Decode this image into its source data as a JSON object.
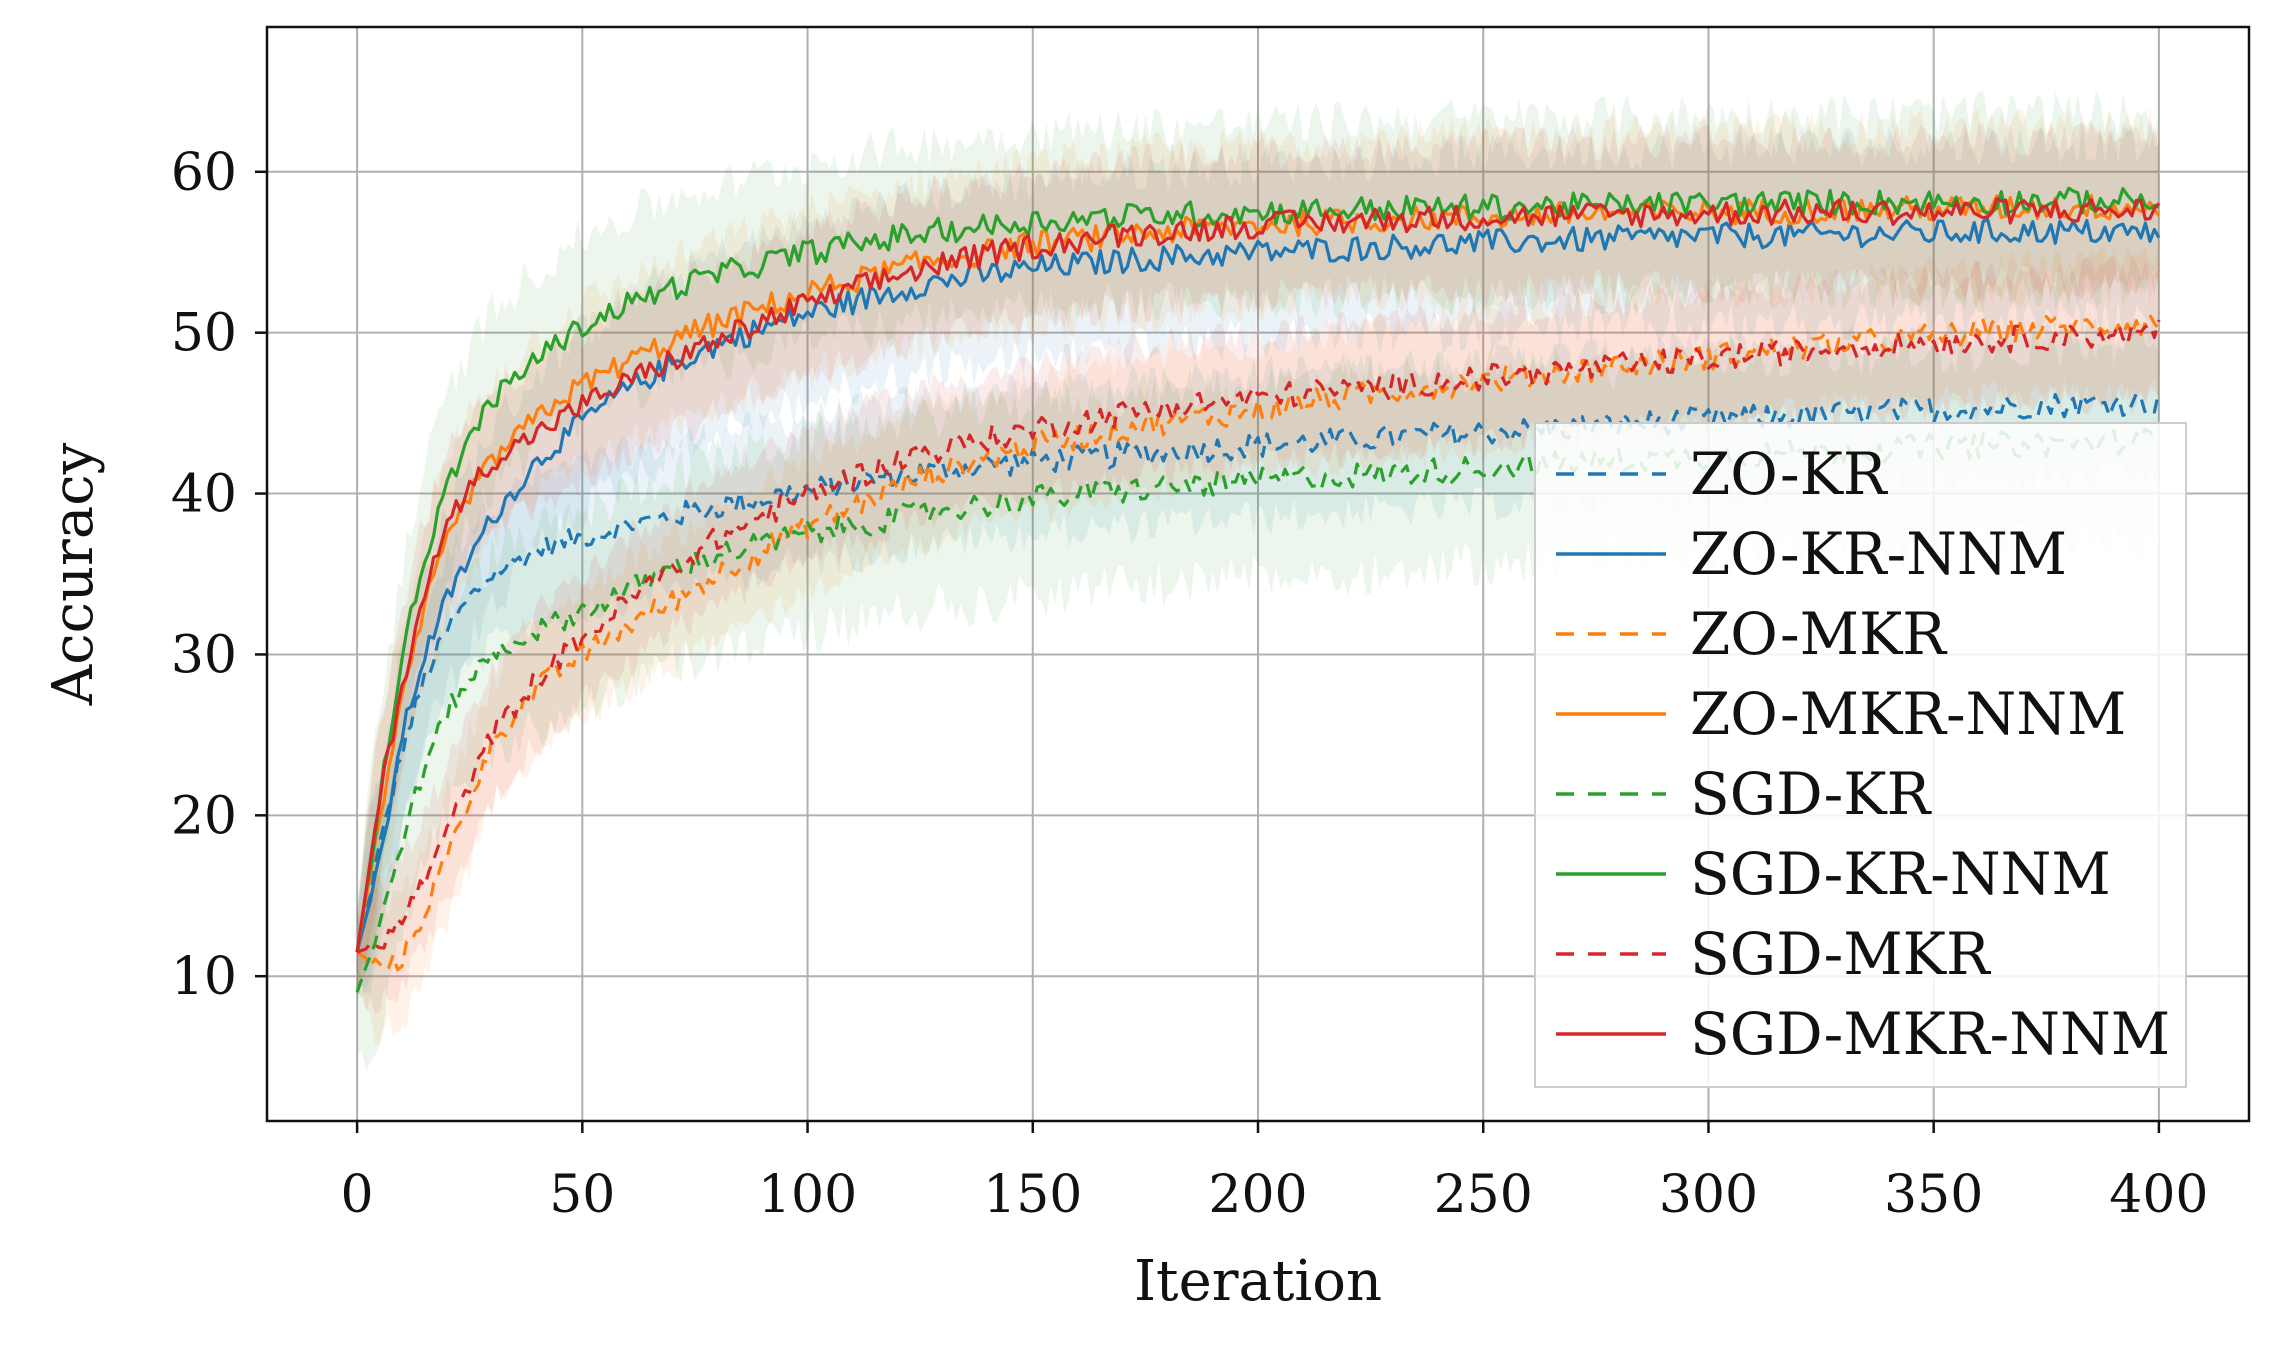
{
  "chart_data": {
    "type": "line",
    "title": "",
    "xlabel": "Iteration",
    "ylabel": "Accuracy",
    "xlim": [
      -20,
      420
    ],
    "ylim": [
      1,
      69
    ],
    "xticks": [
      0,
      50,
      100,
      150,
      200,
      250,
      300,
      350,
      400
    ],
    "yticks": [
      10,
      20,
      30,
      40,
      50,
      60
    ],
    "grid": true,
    "legend_position": "center-right",
    "x_range": [
      0,
      400
    ],
    "series": [
      {
        "name": "ZO-KR",
        "color": "#1f77b4",
        "dashed": true,
        "x": [
          0,
          5,
          10,
          15,
          20,
          25,
          30,
          40,
          50,
          60,
          70,
          80,
          100,
          125,
          150,
          175,
          200,
          225,
          250,
          275,
          300,
          325,
          350,
          375,
          400
        ],
        "y": [
          11.5,
          18,
          24,
          28.5,
          31.5,
          33.5,
          35,
          36.5,
          37.3,
          38,
          38.6,
          39.2,
          40.2,
          41.3,
          42,
          42.5,
          43,
          43.4,
          43.8,
          44.2,
          44.6,
          44.9,
          45.2,
          45.5,
          45.7
        ],
        "band": 4.5
      },
      {
        "name": "ZO-KR-NNM",
        "color": "#1f77b4",
        "dashed": false,
        "x": [
          0,
          5,
          10,
          15,
          20,
          25,
          30,
          40,
          50,
          60,
          70,
          80,
          100,
          125,
          150,
          175,
          200,
          225,
          250,
          275,
          300,
          325,
          350,
          375,
          400
        ],
        "y": [
          11.5,
          17,
          25,
          30,
          33.5,
          36,
          38.5,
          42,
          44.5,
          46.5,
          48,
          49.3,
          51.2,
          53,
          54,
          54.6,
          55,
          55.3,
          55.6,
          55.8,
          56,
          56.1,
          56.2,
          56.3,
          56.2
        ],
        "band": 5.5
      },
      {
        "name": "ZO-MKR",
        "color": "#ff7f0e",
        "dashed": true,
        "x": [
          0,
          5,
          10,
          15,
          20,
          25,
          30,
          40,
          50,
          60,
          70,
          80,
          100,
          125,
          150,
          175,
          200,
          225,
          250,
          275,
          300,
          325,
          350,
          375,
          400
        ],
        "y": [
          11.5,
          10.5,
          11,
          14,
          17.5,
          21,
          24.5,
          28,
          30,
          31.8,
          33.3,
          35,
          38,
          41,
          43,
          44.3,
          45.2,
          46.2,
          47,
          47.8,
          48.5,
          49.2,
          49.8,
          50.3,
          50.6
        ],
        "band": 4
      },
      {
        "name": "ZO-MKR-NNM",
        "color": "#ff7f0e",
        "dashed": false,
        "x": [
          0,
          5,
          10,
          15,
          20,
          25,
          30,
          40,
          50,
          60,
          70,
          80,
          100,
          125,
          150,
          175,
          200,
          225,
          250,
          275,
          300,
          325,
          350,
          375,
          400
        ],
        "y": [
          11.5,
          20,
          27,
          33,
          37,
          40,
          42,
          44.8,
          46.8,
          48.2,
          49.5,
          50.6,
          52.5,
          54.3,
          55.5,
          56.2,
          56.7,
          57,
          57.2,
          57.4,
          57.5,
          57.6,
          57.7,
          57.8,
          57.8
        ],
        "band": 5
      },
      {
        "name": "SGD-KR",
        "color": "#2ca02c",
        "dashed": true,
        "x": [
          0,
          5,
          10,
          15,
          20,
          25,
          30,
          40,
          50,
          60,
          70,
          80,
          100,
          125,
          150,
          175,
          200,
          225,
          250,
          275,
          300,
          325,
          350,
          375,
          400
        ],
        "y": [
          9,
          13,
          18.5,
          23,
          26.5,
          28.5,
          30,
          31.5,
          32.7,
          34,
          35.3,
          36.2,
          37.5,
          38.8,
          39.7,
          40.3,
          40.8,
          41.2,
          41.6,
          42,
          42.3,
          42.6,
          42.9,
          43.1,
          43.3
        ],
        "band": 6
      },
      {
        "name": "SGD-KR-NNM",
        "color": "#2ca02c",
        "dashed": false,
        "x": [
          0,
          5,
          10,
          15,
          20,
          25,
          30,
          40,
          50,
          60,
          70,
          80,
          100,
          125,
          150,
          175,
          200,
          225,
          250,
          275,
          300,
          325,
          350,
          375,
          400
        ],
        "y": [
          11.5,
          21,
          30,
          36,
          40.5,
          43.5,
          45.8,
          48.5,
          50.4,
          51.8,
          52.8,
          53.6,
          55,
          56.2,
          56.9,
          57.3,
          57.5,
          57.7,
          57.8,
          57.9,
          58,
          58.1,
          58.1,
          58.2,
          58.2
        ],
        "band": 5.5
      },
      {
        "name": "SGD-MKR",
        "color": "#d62728",
        "dashed": true,
        "x": [
          0,
          5,
          10,
          15,
          20,
          25,
          30,
          40,
          50,
          60,
          70,
          80,
          100,
          125,
          150,
          175,
          200,
          225,
          250,
          275,
          300,
          325,
          350,
          375,
          400
        ],
        "y": [
          11.5,
          12,
          13.5,
          16,
          19,
          22,
          25,
          28.5,
          31,
          33.3,
          35.3,
          37.2,
          40,
          42.5,
          44,
          45.2,
          46,
          46.6,
          47.2,
          47.8,
          48.4,
          49,
          49.4,
          49.7,
          50
        ],
        "band": 4
      },
      {
        "name": "SGD-MKR-NNM",
        "color": "#d62728",
        "dashed": false,
        "x": [
          0,
          5,
          10,
          15,
          20,
          25,
          30,
          40,
          50,
          60,
          70,
          80,
          100,
          125,
          150,
          175,
          200,
          225,
          250,
          275,
          300,
          325,
          350,
          375,
          400
        ],
        "y": [
          11.5,
          21,
          28,
          34,
          38,
          40.5,
          42,
          43.8,
          45.5,
          47,
          48.3,
          49.5,
          51.8,
          54,
          55.4,
          56.2,
          56.7,
          57,
          57.2,
          57.3,
          57.4,
          57.5,
          57.5,
          57.6,
          57.6
        ],
        "band": 4.5
      }
    ]
  }
}
